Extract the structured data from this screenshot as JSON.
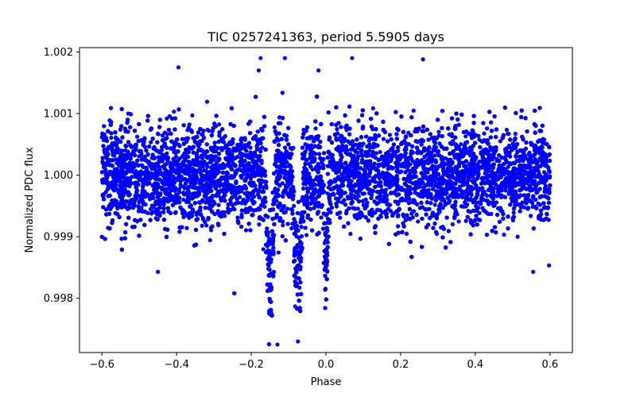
{
  "chart_data": {
    "type": "scatter",
    "title": "TIC 0257241363, period 5.5905 days",
    "xlabel": "Phase",
    "ylabel": "Normalized PDC flux",
    "xlim": [
      -0.66,
      0.66
    ],
    "ylim": [
      0.99712,
      1.00207
    ],
    "xticks": [
      -0.6,
      -0.4,
      -0.2,
      0.0,
      0.2,
      0.4,
      0.6
    ],
    "xtick_labels": [
      "−0.6",
      "−0.4",
      "−0.2",
      "0.0",
      "0.2",
      "0.4",
      "0.6"
    ],
    "yticks": [
      0.998,
      0.999,
      1.0,
      1.001,
      1.002
    ],
    "ytick_labels": [
      "0.998",
      "0.999",
      "1.000",
      "1.001",
      "1.002"
    ],
    "grid": false,
    "marker_color": "#0000ff",
    "series": [
      {
        "name": "PDC flux",
        "x_range": [
          -0.6,
          0.6
        ],
        "baseline_flux": 1.0,
        "typical_scatter": 0.0004,
        "point_count": 12000,
        "dips": [
          {
            "center_phase": -0.15,
            "width_phase": 0.025,
            "min_flux": 0.9973
          },
          {
            "center_phase": -0.075,
            "width_phase": 0.025,
            "min_flux": 0.9975
          },
          {
            "center_phase": 0.0,
            "width_phase": 0.012,
            "min_flux": 0.9979
          }
        ],
        "highlighted_points": [
          {
            "x": -0.395,
            "y": 1.00175
          },
          {
            "x": -0.175,
            "y": 1.0019
          },
          {
            "x": -0.11,
            "y": 1.0019
          },
          {
            "x": -0.18,
            "y": 1.0017
          },
          {
            "x": 0.07,
            "y": 1.0019
          },
          {
            "x": 0.26,
            "y": 1.00188
          },
          {
            "x": -0.02,
            "y": 1.0017
          },
          {
            "x": -0.45,
            "y": 0.99843
          },
          {
            "x": 0.555,
            "y": 0.99843
          },
          {
            "x": -0.13,
            "y": 0.99725
          },
          {
            "x": -0.075,
            "y": 0.9973
          }
        ]
      }
    ]
  }
}
